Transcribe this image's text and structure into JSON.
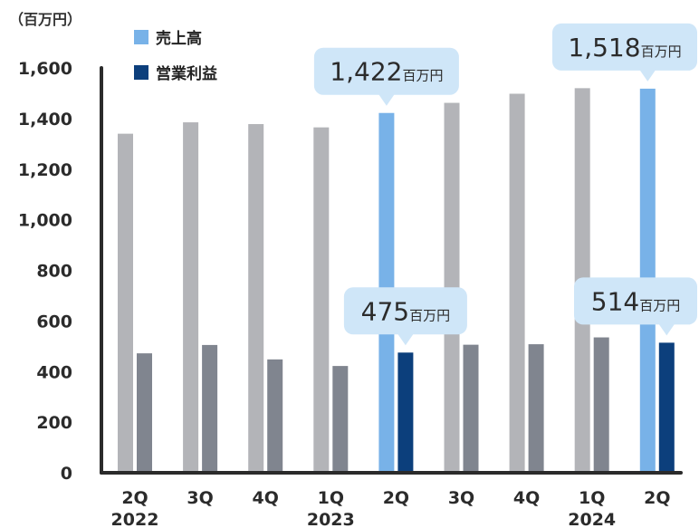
{
  "chart_data": {
    "type": "bar",
    "unit_label": "（百万円）",
    "categories": [
      "2Q",
      "3Q",
      "4Q",
      "1Q",
      "2Q",
      "3Q",
      "4Q",
      "1Q",
      "2Q"
    ],
    "years": [
      "2022",
      "",
      "",
      "2023",
      "",
      "",
      "",
      "2024",
      ""
    ],
    "series": [
      {
        "name": "売上高",
        "values": [
          1340,
          1385,
          1378,
          1365,
          1422,
          1462,
          1498,
          1520,
          1518
        ]
      },
      {
        "name": "営業利益",
        "values": [
          472,
          505,
          448,
          422,
          475,
          506,
          508,
          535,
          514
        ]
      }
    ],
    "highlight_index": [
      4,
      8
    ],
    "ylim": [
      0,
      1600
    ],
    "yticks": [
      "0",
      "200",
      "400",
      "600",
      "800",
      "1,000",
      "1,200",
      "1,400",
      "1,600"
    ],
    "ytick_values": [
      0,
      200,
      400,
      600,
      800,
      1000,
      1200,
      1400,
      1600
    ],
    "legend_position": "top",
    "callouts": [
      {
        "series": 0,
        "index": 4,
        "value": "1,422",
        "unit": "百万円"
      },
      {
        "series": 0,
        "index": 8,
        "value": "1,518",
        "unit": "百万円"
      },
      {
        "series": 1,
        "index": 4,
        "value": "475",
        "unit": "百万円"
      },
      {
        "series": 1,
        "index": 8,
        "value": "514",
        "unit": "百万円"
      }
    ],
    "colors": {
      "sales": "#b3b4b8",
      "profit": "#80858f",
      "sales_highlight": "#78b2e8",
      "profit_highlight": "#0c3f7c",
      "callout_bg": "#cfe6f8",
      "axis": "#2b2b2b"
    }
  }
}
